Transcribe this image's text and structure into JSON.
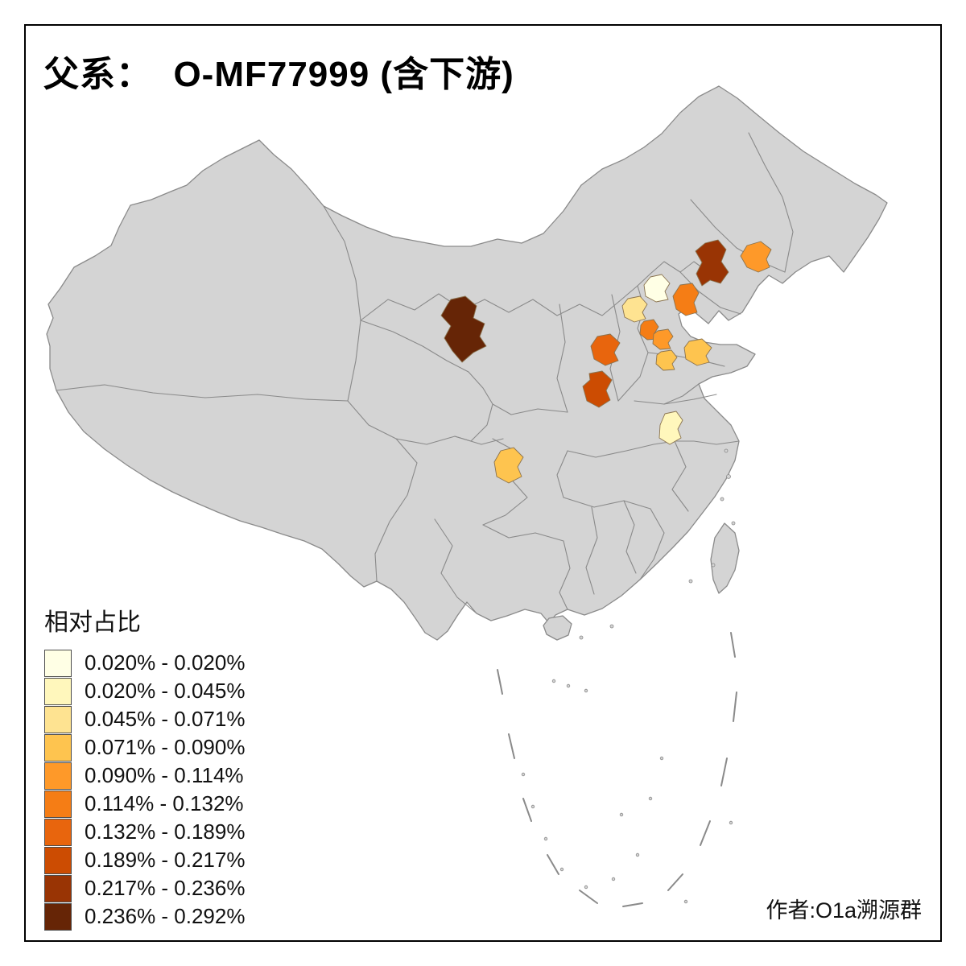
{
  "title": "父系：  O-MF77999 (含下游)",
  "attribution": "作者:O1a溯源群",
  "legend": {
    "title": "相对占比",
    "items": [
      {
        "label": "0.020% - 0.020%",
        "color": "#FFFFE5"
      },
      {
        "label": "0.020% - 0.045%",
        "color": "#FFF7BC"
      },
      {
        "label": "0.045% - 0.071%",
        "color": "#FEE391"
      },
      {
        "label": "0.071% - 0.090%",
        "color": "#FEC44F"
      },
      {
        "label": "0.090% - 0.114%",
        "color": "#FE9929"
      },
      {
        "label": "0.114% - 0.132%",
        "color": "#F57D15"
      },
      {
        "label": "0.132% - 0.189%",
        "color": "#E8650D"
      },
      {
        "label": "0.189% - 0.217%",
        "color": "#CC4C02"
      },
      {
        "label": "0.217% - 0.236%",
        "color": "#993404"
      },
      {
        "label": "0.236% - 0.292%",
        "color": "#662506"
      }
    ]
  },
  "map": {
    "base_fill": "#D4D4D4",
    "border_color": "#8A8A8A",
    "background": "#FFFFFF",
    "regions": [
      {
        "id": "highlight-1",
        "bucket": 10
      },
      {
        "id": "highlight-2",
        "bucket": 9
      },
      {
        "id": "highlight-3",
        "bucket": 5
      },
      {
        "id": "highlight-4",
        "bucket": 6
      },
      {
        "id": "highlight-5",
        "bucket": 1
      },
      {
        "id": "highlight-6",
        "bucket": 3
      },
      {
        "id": "highlight-7",
        "bucket": 6
      },
      {
        "id": "highlight-8",
        "bucket": 5
      },
      {
        "id": "highlight-9",
        "bucket": 7
      },
      {
        "id": "highlight-10",
        "bucket": 4
      },
      {
        "id": "highlight-11",
        "bucket": 4
      },
      {
        "id": "highlight-12",
        "bucket": 8
      },
      {
        "id": "highlight-13",
        "bucket": 2
      },
      {
        "id": "highlight-14",
        "bucket": 4
      }
    ]
  }
}
